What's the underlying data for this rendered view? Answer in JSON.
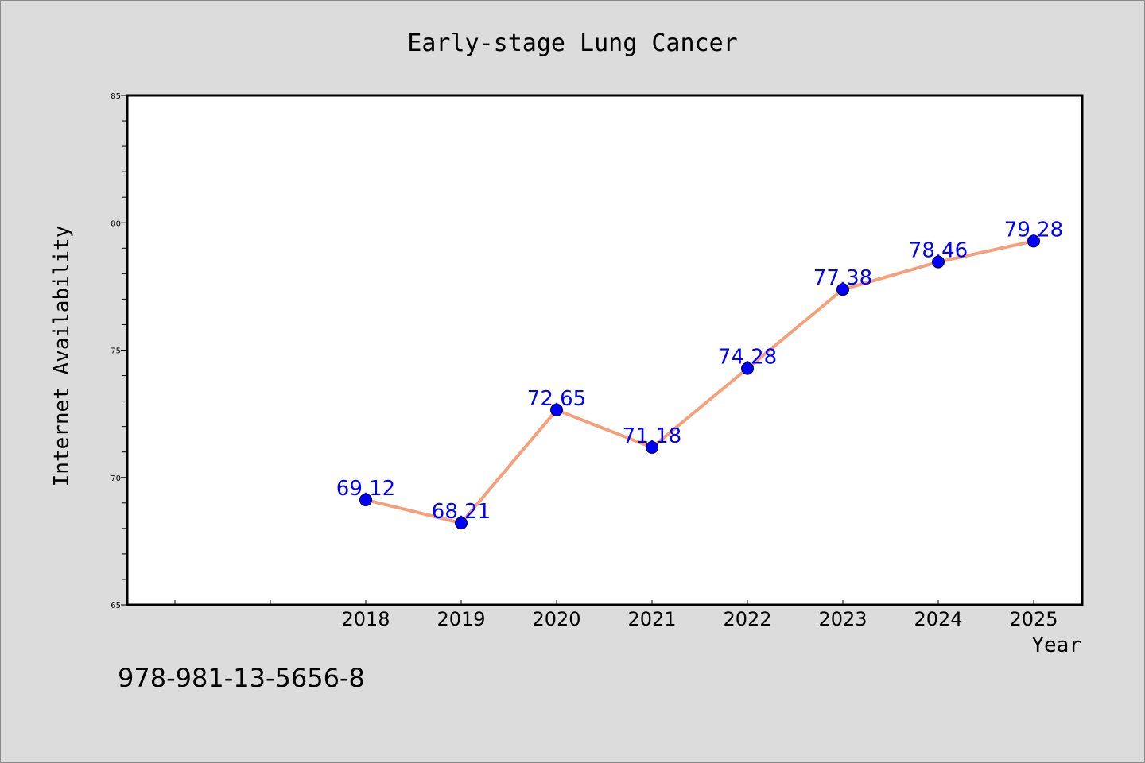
{
  "chart_data": {
    "type": "line",
    "title": "Early-stage Lung Cancer",
    "xlabel": "Year",
    "ylabel": "Internet Availability",
    "ylim": [
      65,
      85
    ],
    "yticks": [
      "65",
      "70",
      "75",
      "80",
      "85"
    ],
    "categories": [
      "2018",
      "2019",
      "2020",
      "2021",
      "2022",
      "2023",
      "2024",
      "2025"
    ],
    "series": [
      {
        "values": [
          69.12,
          68.21,
          72.65,
          71.18,
          74.28,
          77.38,
          78.46,
          79.28
        ],
        "labels": [
          "69.12",
          "68.21",
          "72.65",
          "71.18",
          "74.28",
          "77.38",
          "78.46",
          "79.28"
        ]
      }
    ],
    "grid": false,
    "colors": {
      "line": "#f4a07a",
      "marker": "#0000ff",
      "label": "#0000ff",
      "background": "#dcdcdc",
      "plot": "#ffffff"
    }
  },
  "footer": {
    "isbn": "978-981-13-5656-8"
  }
}
